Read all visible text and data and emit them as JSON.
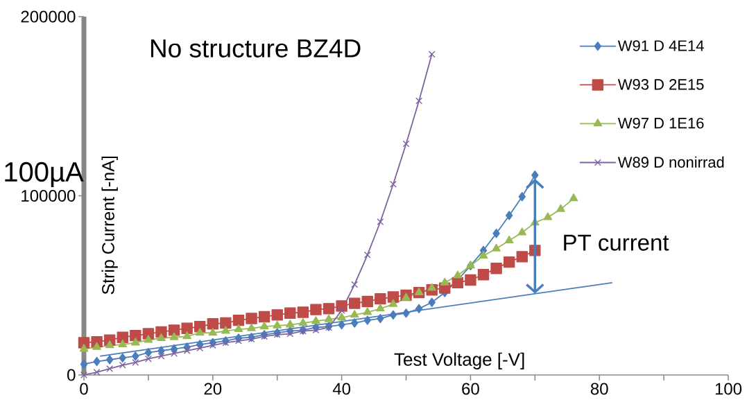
{
  "chart_data": {
    "type": "line",
    "title": "No structure BZ4D",
    "xlabel": "Test Voltage [-V]",
    "ylabel": "Strip Current [-nA]",
    "annotations": [
      "100µA",
      "PT current"
    ],
    "xlim": [
      0,
      100
    ],
    "ylim": [
      0,
      200000
    ],
    "xticks": [
      0,
      {
        "value": 10,
        "label": null
      },
      20,
      {
        "value": 30,
        "label": null
      },
      40,
      {
        "value": 50,
        "label": null
      },
      60,
      {
        "value": 70,
        "label": null
      },
      80,
      {
        "value": 90,
        "label": null
      },
      100
    ],
    "yticks": [
      0,
      100000,
      200000
    ],
    "legend": "top right",
    "series": [
      {
        "name": "W91 D 4E14",
        "color": "#4a7ebb",
        "marker": "diamond",
        "x": [
          0,
          2,
          4,
          6,
          8,
          10,
          12,
          14,
          16,
          18,
          20,
          22,
          24,
          26,
          28,
          30,
          32,
          34,
          36,
          38,
          40,
          42,
          44,
          46,
          48,
          50,
          52,
          54,
          56,
          58,
          60,
          62,
          64,
          66,
          68,
          70
        ],
        "values": [
          6000,
          7500,
          8500,
          9500,
          10500,
          12500,
          13500,
          14500,
          15500,
          17000,
          18000,
          19000,
          20500,
          21000,
          22500,
          23500,
          24500,
          25000,
          26500,
          27000,
          28000,
          29000,
          30500,
          31500,
          33500,
          34500,
          37000,
          40500,
          46000,
          53000,
          61000,
          69500,
          79000,
          89000,
          99500,
          111500
        ]
      },
      {
        "name": "W93 D 2E15",
        "color": "#be4b48",
        "marker": "square",
        "x": [
          0,
          2,
          4,
          6,
          8,
          10,
          12,
          14,
          16,
          18,
          20,
          22,
          24,
          26,
          28,
          30,
          32,
          34,
          36,
          38,
          40,
          42,
          44,
          46,
          48,
          50,
          52,
          54,
          56,
          58,
          60,
          62,
          64,
          66,
          68,
          70
        ],
        "values": [
          18000,
          18500,
          19500,
          21000,
          22000,
          23000,
          24000,
          25000,
          26000,
          27000,
          28500,
          29000,
          30500,
          31500,
          32500,
          33500,
          34500,
          35000,
          36500,
          37000,
          38500,
          40000,
          41000,
          42500,
          43500,
          44500,
          46000,
          47500,
          48500,
          51500,
          53000,
          56000,
          59500,
          63000,
          66000,
          69500
        ]
      },
      {
        "name": "W97 D 1E16",
        "color": "#98b954",
        "marker": "triangle",
        "x": [
          0,
          2,
          4,
          6,
          8,
          10,
          12,
          14,
          16,
          18,
          20,
          22,
          24,
          26,
          28,
          30,
          32,
          34,
          36,
          38,
          40,
          42,
          44,
          46,
          48,
          50,
          52,
          54,
          56,
          58,
          60,
          62,
          64,
          66,
          68,
          70,
          72,
          74,
          76
        ],
        "values": [
          14500,
          15500,
          16500,
          17000,
          18000,
          19500,
          20500,
          21000,
          21500,
          23500,
          23500,
          24500,
          25500,
          26000,
          27000,
          27500,
          28000,
          29000,
          30000,
          31000,
          32000,
          33500,
          35000,
          37000,
          39500,
          43000,
          46000,
          48500,
          51500,
          55500,
          61000,
          66500,
          70500,
          75000,
          79500,
          85000,
          88000,
          92500,
          98500
        ]
      },
      {
        "name": "W89 D nonirrad",
        "color": "#7d60a0",
        "marker": "cross",
        "x": [
          0,
          2,
          4,
          6,
          8,
          10,
          12,
          14,
          16,
          18,
          20,
          22,
          24,
          26,
          28,
          30,
          32,
          34,
          36,
          38,
          40,
          42,
          44,
          46,
          48,
          50,
          52,
          54
        ],
        "values": [
          0,
          1500,
          3500,
          5500,
          7000,
          9000,
          10500,
          12000,
          13500,
          15000,
          16500,
          18000,
          19000,
          20000,
          21500,
          22500,
          23000,
          24500,
          25000,
          26500,
          36000,
          50500,
          67000,
          85500,
          106500,
          129000,
          153000,
          179000
        ]
      },
      {
        "color": "#4a7ebb",
        "marker": "none",
        "x": [
          2.5,
          82
        ],
        "values": [
          10500,
          51500
        ]
      }
    ]
  }
}
